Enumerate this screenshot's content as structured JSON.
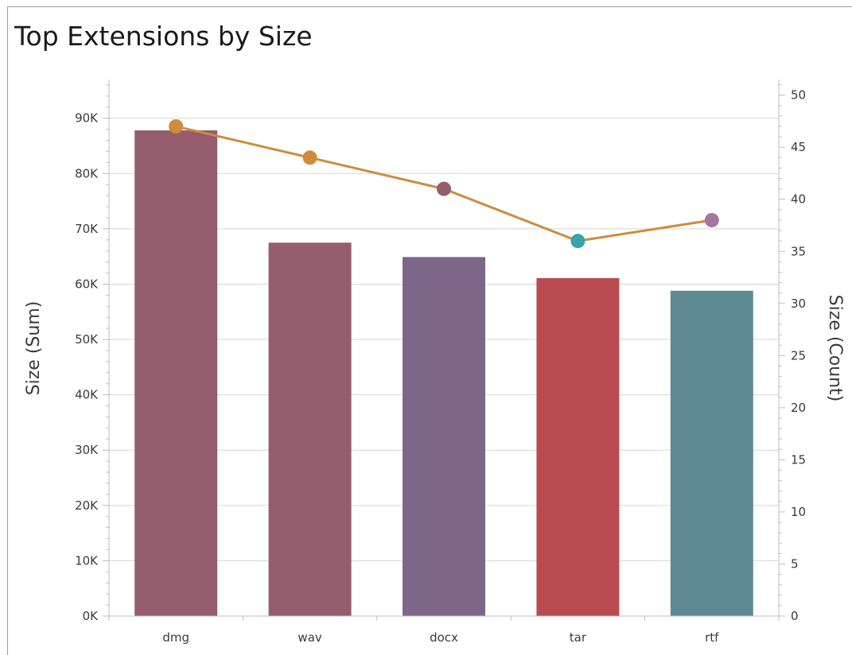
{
  "chart_data": {
    "type": "bar",
    "title": "Top Extensions by Size",
    "categories": [
      "dmg",
      "wav",
      "docx",
      "tar",
      "rtf"
    ],
    "series": [
      {
        "name": "Size (Sum)",
        "type": "bar",
        "axis": "left",
        "values": [
          87800,
          67500,
          64900,
          61100,
          58800
        ],
        "colors": [
          "#955d6d",
          "#955d6d",
          "#7d6688",
          "#b94b50",
          "#5f8992"
        ]
      },
      {
        "name": "Size (Count)",
        "type": "line",
        "axis": "right",
        "values": [
          47,
          44,
          41,
          36,
          38
        ],
        "line_color": "#cd8d3c",
        "marker_colors": [
          "#cd8d3c",
          "#cd8d3c",
          "#955d6d",
          "#3aa3ac",
          "#a576a2"
        ]
      }
    ],
    "ylabel": "Size (Sum)",
    "y2label": "Size (Count)",
    "ylim": [
      0,
      97000
    ],
    "y2lim": [
      0,
      51.5
    ],
    "yticks": [
      0,
      10000,
      20000,
      30000,
      40000,
      50000,
      60000,
      70000,
      80000,
      90000
    ],
    "ytick_labels": [
      "0K",
      "10K",
      "20K",
      "30K",
      "40K",
      "50K",
      "60K",
      "70K",
      "80K",
      "90K"
    ],
    "y2ticks": [
      0,
      5,
      10,
      15,
      20,
      25,
      30,
      35,
      40,
      45,
      50
    ],
    "y2tick_labels": [
      "0",
      "5",
      "10",
      "15",
      "20",
      "25",
      "30",
      "35",
      "40",
      "45",
      "50"
    ],
    "grid": true,
    "legend": "none"
  }
}
